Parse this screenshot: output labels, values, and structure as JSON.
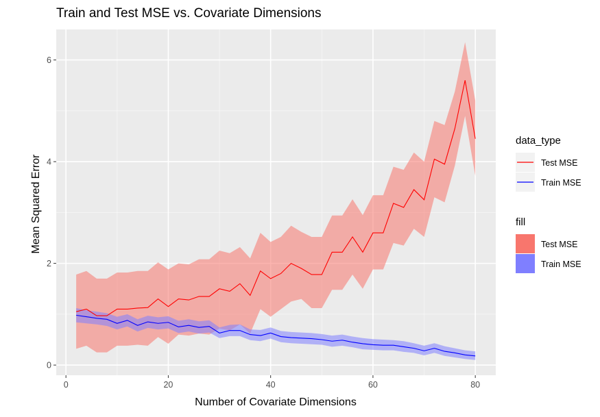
{
  "chart_data": {
    "type": "line",
    "title": "Train and Test MSE vs. Covariate Dimensions",
    "xlabel": "Number of Covariate Dimensions",
    "ylabel": "Mean Squared Error",
    "xlim": [
      -1.9,
      84
    ],
    "ylim": [
      -0.2,
      6.6
    ],
    "xticks": [
      0,
      20,
      40,
      60,
      80
    ],
    "yticks": [
      0,
      2,
      4,
      6
    ],
    "grid": true,
    "background": "#ebebeb",
    "x": [
      2,
      4,
      6,
      8,
      10,
      12,
      14,
      16,
      18,
      20,
      22,
      24,
      26,
      28,
      30,
      32,
      34,
      36,
      38,
      40,
      42,
      44,
      46,
      48,
      50,
      52,
      54,
      56,
      58,
      60,
      62,
      64,
      66,
      68,
      70,
      72,
      74,
      76,
      78,
      80
    ],
    "series": [
      {
        "name": "Test MSE",
        "color": "#ff0000",
        "fill": "#f8766d",
        "values": [
          1.05,
          1.1,
          0.97,
          0.97,
          1.1,
          1.1,
          1.12,
          1.13,
          1.3,
          1.15,
          1.3,
          1.28,
          1.35,
          1.35,
          1.5,
          1.45,
          1.6,
          1.37,
          1.85,
          1.7,
          1.8,
          2.0,
          1.9,
          1.78,
          1.78,
          2.22,
          2.22,
          2.52,
          2.22,
          2.6,
          2.6,
          3.18,
          3.1,
          3.45,
          3.25,
          4.05,
          3.95,
          4.65,
          5.6,
          4.45
        ],
        "lower": [
          0.32,
          0.38,
          0.25,
          0.25,
          0.38,
          0.38,
          0.4,
          0.38,
          0.55,
          0.42,
          0.6,
          0.58,
          0.62,
          0.6,
          0.72,
          0.68,
          0.8,
          0.62,
          1.1,
          0.95,
          1.1,
          1.25,
          1.3,
          1.12,
          1.12,
          1.48,
          1.48,
          1.78,
          1.5,
          1.88,
          1.88,
          2.4,
          2.35,
          2.68,
          2.52,
          3.3,
          3.2,
          3.92,
          4.9,
          3.72
        ],
        "upper": [
          1.78,
          1.85,
          1.7,
          1.7,
          1.82,
          1.82,
          1.85,
          1.85,
          2.02,
          1.88,
          2.0,
          1.98,
          2.08,
          2.08,
          2.25,
          2.2,
          2.32,
          2.1,
          2.6,
          2.42,
          2.52,
          2.74,
          2.62,
          2.52,
          2.52,
          2.94,
          2.94,
          3.26,
          2.95,
          3.34,
          3.34,
          3.9,
          3.84,
          4.18,
          4.0,
          4.8,
          4.72,
          5.38,
          6.35,
          5.2
        ]
      },
      {
        "name": "Train MSE",
        "color": "#0000ff",
        "fill": "#7f7fff",
        "values": [
          0.98,
          0.95,
          0.92,
          0.9,
          0.82,
          0.88,
          0.78,
          0.85,
          0.82,
          0.84,
          0.75,
          0.78,
          0.74,
          0.76,
          0.63,
          0.68,
          0.68,
          0.6,
          0.58,
          0.63,
          0.56,
          0.54,
          0.53,
          0.52,
          0.5,
          0.47,
          0.49,
          0.45,
          0.42,
          0.4,
          0.39,
          0.39,
          0.36,
          0.33,
          0.28,
          0.33,
          0.27,
          0.24,
          0.2,
          0.18
        ],
        "lower": [
          0.84,
          0.82,
          0.8,
          0.77,
          0.7,
          0.76,
          0.66,
          0.73,
          0.7,
          0.72,
          0.63,
          0.66,
          0.62,
          0.64,
          0.53,
          0.57,
          0.57,
          0.49,
          0.47,
          0.52,
          0.45,
          0.43,
          0.42,
          0.41,
          0.4,
          0.36,
          0.38,
          0.35,
          0.31,
          0.3,
          0.29,
          0.29,
          0.26,
          0.24,
          0.19,
          0.24,
          0.18,
          0.15,
          0.12,
          0.1
        ],
        "upper": [
          1.12,
          1.08,
          1.05,
          1.02,
          0.95,
          1.0,
          0.9,
          0.97,
          0.94,
          0.96,
          0.87,
          0.9,
          0.86,
          0.88,
          0.74,
          0.79,
          0.8,
          0.7,
          0.69,
          0.74,
          0.67,
          0.65,
          0.64,
          0.63,
          0.61,
          0.58,
          0.6,
          0.56,
          0.53,
          0.51,
          0.5,
          0.49,
          0.47,
          0.43,
          0.38,
          0.43,
          0.37,
          0.33,
          0.29,
          0.27
        ]
      }
    ],
    "legends": [
      {
        "title": "data_type",
        "kind": "line",
        "entries": [
          {
            "label": "Test MSE",
            "color": "#ff0000"
          },
          {
            "label": "Train MSE",
            "color": "#0000ff"
          }
        ]
      },
      {
        "title": "fill",
        "kind": "fill",
        "entries": [
          {
            "label": "Test MSE",
            "color": "#f8766d"
          },
          {
            "label": "Train MSE",
            "color": "#7f7fff"
          }
        ]
      }
    ],
    "legend_position": "right"
  }
}
